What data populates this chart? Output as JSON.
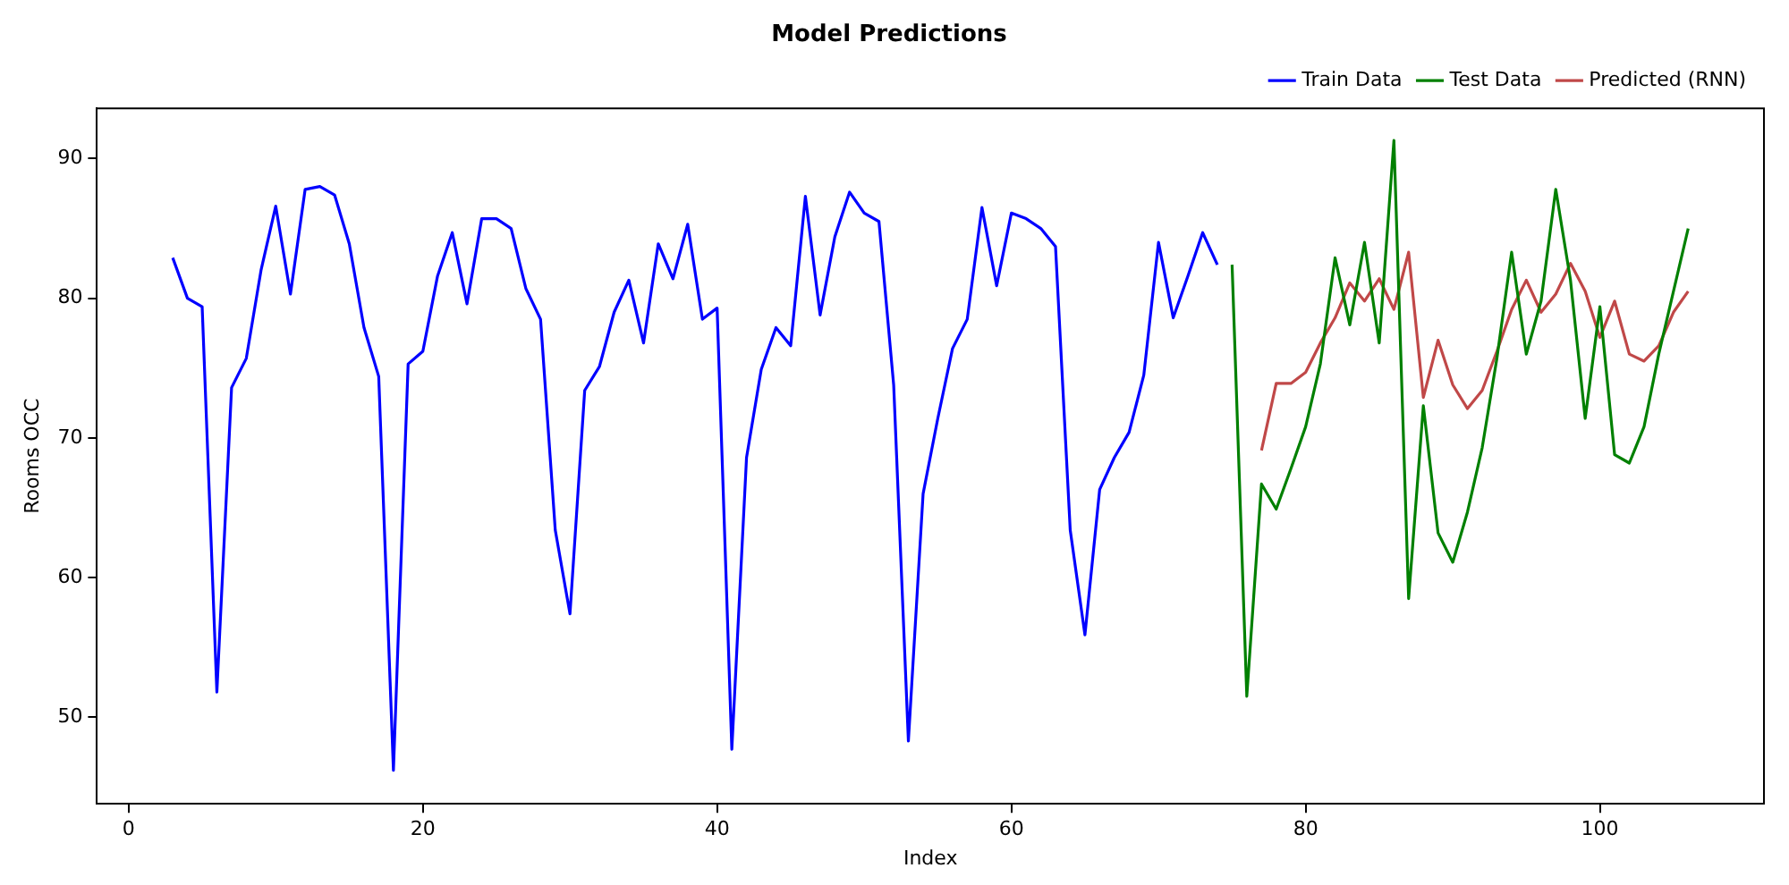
{
  "chart_data": {
    "type": "line",
    "title": "Model Predictions",
    "xlabel": "Index",
    "ylabel": "Rooms OCC",
    "xlim": [
      -2.15,
      111.15
    ],
    "ylim": [
      43.8,
      93.6
    ],
    "xticks": [
      0,
      20,
      40,
      60,
      80,
      100
    ],
    "yticks": [
      50,
      60,
      70,
      80,
      90
    ],
    "grid": false,
    "legend": "top right",
    "marker": "none",
    "line_style": "solid",
    "series": [
      {
        "name": "Train Data",
        "color": "#0000ff",
        "x": [
          3,
          4,
          5,
          6,
          7,
          8,
          9,
          10,
          11,
          12,
          13,
          14,
          15,
          16,
          17,
          18,
          19,
          20,
          21,
          22,
          23,
          24,
          25,
          26,
          27,
          28,
          29,
          30,
          31,
          32,
          33,
          34,
          35,
          36,
          37,
          38,
          39,
          40,
          41,
          42,
          43,
          44,
          45,
          46,
          47,
          48,
          49,
          50,
          51,
          52,
          53,
          54,
          55,
          56,
          57,
          58,
          59,
          60,
          61,
          62,
          63,
          64,
          65,
          66,
          67,
          68,
          69,
          70,
          71,
          72,
          73,
          74
        ],
        "values": [
          82.9,
          80.0,
          79.4,
          51.8,
          73.6,
          75.7,
          82.0,
          86.6,
          80.3,
          87.8,
          88.0,
          87.4,
          83.9,
          77.9,
          74.4,
          46.2,
          75.3,
          76.2,
          81.6,
          84.7,
          79.6,
          85.7,
          85.7,
          85.0,
          80.7,
          78.5,
          63.4,
          57.4,
          73.4,
          75.1,
          79.0,
          81.3,
          76.8,
          83.9,
          81.4,
          85.3,
          78.5,
          79.3,
          47.7,
          68.6,
          74.9,
          77.9,
          76.6,
          87.3,
          78.8,
          84.4,
          87.6,
          86.1,
          85.5,
          73.8,
          48.3,
          66.0,
          71.4,
          76.4,
          78.5,
          86.5,
          80.9,
          86.1,
          85.7,
          85.0,
          83.7,
          63.4,
          55.9,
          66.3,
          68.6,
          70.4,
          74.5,
          84.0,
          78.6,
          81.6,
          84.7,
          82.4
        ]
      },
      {
        "name": "Test Data",
        "color": "#008000",
        "x": [
          75,
          76,
          77,
          78,
          79,
          80,
          81,
          82,
          83,
          84,
          85,
          86,
          87,
          88,
          89,
          90,
          91,
          92,
          93,
          94,
          95,
          96,
          97,
          98,
          99,
          100,
          101,
          102,
          103,
          104,
          105,
          106
        ],
        "values": [
          82.4,
          51.5,
          66.7,
          64.9,
          67.8,
          70.8,
          75.3,
          82.9,
          78.1,
          84.0,
          76.8,
          91.3,
          58.5,
          72.3,
          63.2,
          61.1,
          64.7,
          69.3,
          75.7,
          83.3,
          76.0,
          79.8,
          87.8,
          81.3,
          71.4,
          79.4,
          68.8,
          68.2,
          70.8,
          76.0,
          80.5,
          85.0
        ]
      },
      {
        "name": "Predicted (RNN)",
        "color": "#c04848",
        "x": [
          77,
          78,
          79,
          80,
          81,
          82,
          83,
          84,
          85,
          86,
          87,
          88,
          89,
          90,
          91,
          92,
          93,
          94,
          95,
          96,
          97,
          98,
          99,
          100,
          101,
          102,
          103,
          104,
          105,
          106
        ],
        "values": [
          69.1,
          73.9,
          73.9,
          74.7,
          76.8,
          78.6,
          81.1,
          79.8,
          81.4,
          79.2,
          83.3,
          72.9,
          77.0,
          73.8,
          72.1,
          73.4,
          76.2,
          79.2,
          81.3,
          79.0,
          80.3,
          82.5,
          80.5,
          77.2,
          79.8,
          76.0,
          75.5,
          76.6,
          79.0,
          80.5
        ]
      }
    ]
  }
}
